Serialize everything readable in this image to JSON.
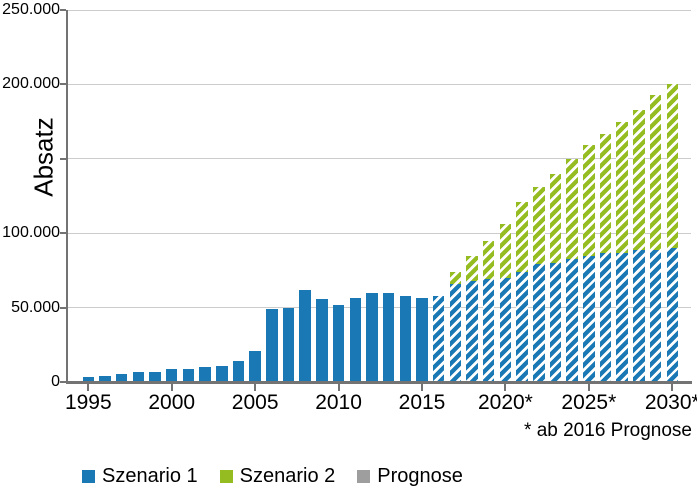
{
  "chart_data": {
    "type": "bar",
    "stacked": true,
    "title": "",
    "xlabel": "",
    "ylabel": "Absatz",
    "footnote": "* ab 2016 Prognose",
    "ylim": [
      0,
      250000
    ],
    "grid": "horizontal",
    "legend_position": "bottom-left",
    "prognose_from_year": 2016,
    "colors": {
      "szenario1": "#1a79b5",
      "szenario2": "#95bd22",
      "prognose_swatch": "#9e9e9e",
      "gridline": "#cccccc",
      "axis": "#737373",
      "text": "#000000"
    },
    "y_ticks": [
      {
        "value": 250000,
        "label": "250.000"
      },
      {
        "value": 200000,
        "label": "200.000"
      },
      {
        "value": 150000,
        "label": ""
      },
      {
        "value": 100000,
        "label": "100.000"
      },
      {
        "value": 50000,
        "label": "50.000"
      },
      {
        "value": 0,
        "label": "0"
      }
    ],
    "x_ticks": [
      {
        "year": 1995,
        "label": "1995"
      },
      {
        "year": 2000,
        "label": "2000"
      },
      {
        "year": 2005,
        "label": "2005"
      },
      {
        "year": 2010,
        "label": "2010"
      },
      {
        "year": 2015,
        "label": "2015"
      },
      {
        "year": 2020,
        "label": "2020*"
      },
      {
        "year": 2025,
        "label": "2025*"
      },
      {
        "year": 2030,
        "label": "2030*"
      }
    ],
    "legend": [
      {
        "label": "Szenario 1",
        "swatch": "szenario1"
      },
      {
        "label": "Szenario 2",
        "swatch": "szenario2"
      },
      {
        "label": "Prognose",
        "swatch": "prognose"
      }
    ],
    "years": [
      {
        "year": 1995,
        "szenario1": 3500,
        "szenario2": 3500,
        "prognose": false
      },
      {
        "year": 1996,
        "szenario1": 4000,
        "szenario2": 4000,
        "prognose": false
      },
      {
        "year": 1997,
        "szenario1": 5500,
        "szenario2": 5500,
        "prognose": false
      },
      {
        "year": 1998,
        "szenario1": 6500,
        "szenario2": 6500,
        "prognose": false
      },
      {
        "year": 1999,
        "szenario1": 7000,
        "szenario2": 7000,
        "prognose": false
      },
      {
        "year": 2000,
        "szenario1": 8500,
        "szenario2": 8500,
        "prognose": false
      },
      {
        "year": 2001,
        "szenario1": 9000,
        "szenario2": 9000,
        "prognose": false
      },
      {
        "year": 2002,
        "szenario1": 10000,
        "szenario2": 10000,
        "prognose": false
      },
      {
        "year": 2003,
        "szenario1": 11000,
        "szenario2": 11000,
        "prognose": false
      },
      {
        "year": 2004,
        "szenario1": 14000,
        "szenario2": 14000,
        "prognose": false
      },
      {
        "year": 2005,
        "szenario1": 21000,
        "szenario2": 21000,
        "prognose": false
      },
      {
        "year": 2006,
        "szenario1": 49000,
        "szenario2": 49000,
        "prognose": false
      },
      {
        "year": 2007,
        "szenario1": 50000,
        "szenario2": 50000,
        "prognose": false
      },
      {
        "year": 2008,
        "szenario1": 62000,
        "szenario2": 62000,
        "prognose": false
      },
      {
        "year": 2009,
        "szenario1": 56000,
        "szenario2": 56000,
        "prognose": false
      },
      {
        "year": 2010,
        "szenario1": 52000,
        "szenario2": 52000,
        "prognose": false
      },
      {
        "year": 2011,
        "szenario1": 56500,
        "szenario2": 56500,
        "prognose": false
      },
      {
        "year": 2012,
        "szenario1": 59500,
        "szenario2": 59500,
        "prognose": false
      },
      {
        "year": 2013,
        "szenario1": 59500,
        "szenario2": 59500,
        "prognose": false
      },
      {
        "year": 2014,
        "szenario1": 57500,
        "szenario2": 57500,
        "prognose": false
      },
      {
        "year": 2015,
        "szenario1": 56500,
        "szenario2": 56500,
        "prognose": false
      },
      {
        "year": 2016,
        "szenario1": 58000,
        "szenario2": 58000,
        "prognose": true
      },
      {
        "year": 2017,
        "szenario1": 66000,
        "szenario2": 74000,
        "prognose": true
      },
      {
        "year": 2018,
        "szenario1": 68000,
        "szenario2": 85000,
        "prognose": true
      },
      {
        "year": 2019,
        "szenario1": 69000,
        "szenario2": 95000,
        "prognose": true
      },
      {
        "year": 2020,
        "szenario1": 70000,
        "szenario2": 106000,
        "prognose": true
      },
      {
        "year": 2021,
        "szenario1": 74000,
        "szenario2": 121000,
        "prognose": true
      },
      {
        "year": 2022,
        "szenario1": 79000,
        "szenario2": 131000,
        "prognose": true
      },
      {
        "year": 2023,
        "szenario1": 80000,
        "szenario2": 140000,
        "prognose": true
      },
      {
        "year": 2024,
        "szenario1": 83000,
        "szenario2": 150000,
        "prognose": true
      },
      {
        "year": 2025,
        "szenario1": 85000,
        "szenario2": 159000,
        "prognose": true
      },
      {
        "year": 2026,
        "szenario1": 87000,
        "szenario2": 167000,
        "prognose": true
      },
      {
        "year": 2027,
        "szenario1": 87000,
        "szenario2": 175000,
        "prognose": true
      },
      {
        "year": 2028,
        "szenario1": 89000,
        "szenario2": 183000,
        "prognose": true
      },
      {
        "year": 2029,
        "szenario1": 89000,
        "szenario2": 193000,
        "prognose": true
      },
      {
        "year": 2030,
        "szenario1": 90000,
        "szenario2": 200000,
        "prognose": true
      }
    ]
  }
}
